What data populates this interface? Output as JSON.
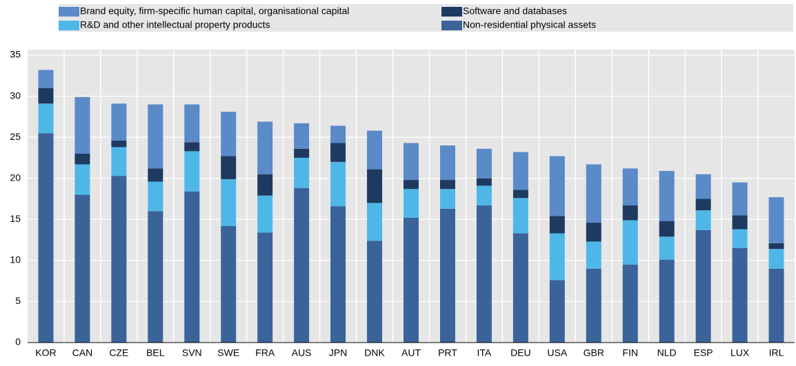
{
  "chart_data": {
    "type": "stacked_bar",
    "categories": [
      "KOR",
      "CAN",
      "CZE",
      "BEL",
      "SVN",
      "SWE",
      "FRA",
      "AUS",
      "JPN",
      "DNK",
      "AUT",
      "PRT",
      "ITA",
      "DEU",
      "USA",
      "GBR",
      "FIN",
      "NLD",
      "ESP",
      "LUX",
      "IRL"
    ],
    "series": [
      {
        "name": "Non-residential physical assets",
        "color": "#3a6399",
        "values": [
          25.5,
          18.0,
          20.3,
          16.0,
          18.4,
          14.2,
          13.4,
          18.8,
          16.6,
          12.4,
          15.2,
          16.3,
          16.7,
          13.3,
          7.6,
          9.0,
          9.5,
          10.1,
          13.7,
          11.5,
          9.0
        ]
      },
      {
        "name": "R&D and other intellectual property products",
        "color": "#4fb7e8",
        "values": [
          3.6,
          3.7,
          3.5,
          3.6,
          4.9,
          5.7,
          4.5,
          3.7,
          5.4,
          4.6,
          3.5,
          2.4,
          2.4,
          4.3,
          5.7,
          3.3,
          5.4,
          2.8,
          2.4,
          2.3,
          2.4
        ]
      },
      {
        "name": "Software and databases",
        "color": "#1f3a60",
        "values": [
          1.9,
          1.3,
          0.8,
          1.6,
          1.1,
          2.8,
          2.6,
          1.1,
          2.3,
          4.1,
          1.1,
          1.1,
          0.9,
          1.0,
          2.1,
          2.3,
          1.8,
          1.9,
          1.4,
          1.7,
          0.7
        ]
      },
      {
        "name": "Brand equity, firm-specific human capital, organisational capital",
        "color": "#5a8ac8",
        "values": [
          2.2,
          6.9,
          4.5,
          7.8,
          4.6,
          5.4,
          6.4,
          3.1,
          2.1,
          4.7,
          4.5,
          4.2,
          3.6,
          4.6,
          7.3,
          7.1,
          4.5,
          6.1,
          3.0,
          4.0,
          5.6
        ]
      }
    ],
    "ylim": [
      0,
      35
    ],
    "yticks": [
      0,
      5,
      10,
      15,
      20,
      25,
      30,
      35
    ],
    "grid": true
  }
}
